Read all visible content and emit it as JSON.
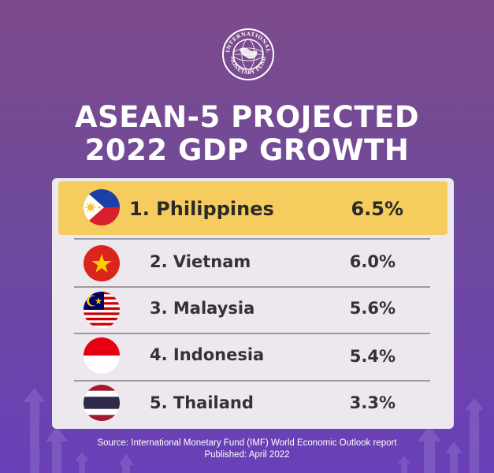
{
  "logo": {
    "text": "INTERNATIONAL MONETARY FUND",
    "icon": "imf-seal-logo"
  },
  "title": {
    "line1": "ASEAN-5 PROJECTED",
    "line2": "2022 GDP GROWTH"
  },
  "chart_data": {
    "type": "table",
    "title": "ASEAN-5 PROJECTED 2022 GDP GROWTH",
    "rows": [
      {
        "rank": 1,
        "label": "1. Philippines",
        "country": "Philippines",
        "value": 6.5,
        "value_text": "6.5%",
        "flag": "philippines-flag-icon",
        "highlighted": true
      },
      {
        "rank": 2,
        "label": "2. Vietnam",
        "country": "Vietnam",
        "value": 6.0,
        "value_text": "6.0%",
        "flag": "vietnam-flag-icon",
        "highlighted": false
      },
      {
        "rank": 3,
        "label": "3. Malaysia",
        "country": "Malaysia",
        "value": 5.6,
        "value_text": "5.6%",
        "flag": "malaysia-flag-icon",
        "highlighted": false
      },
      {
        "rank": 4,
        "label": "4. Indonesia",
        "country": "Indonesia",
        "value": 5.4,
        "value_text": "5.4%",
        "flag": "indonesia-flag-icon",
        "highlighted": false
      },
      {
        "rank": 5,
        "label": "5. Thailand",
        "country": "Thailand",
        "value": 3.3,
        "value_text": "3.3%",
        "flag": "thailand-flag-icon",
        "highlighted": false
      }
    ]
  },
  "footer": {
    "source": "Source: International Monetary Fund (IMF) World Economic Outlook report",
    "published": "Published: April 2022"
  },
  "colors": {
    "background_top": "#7e4a8c",
    "background_bottom": "#6a3fb8",
    "highlight": "#f5cc5d",
    "card": "#ece8ee",
    "text": "#333333",
    "title": "#ffffff"
  }
}
